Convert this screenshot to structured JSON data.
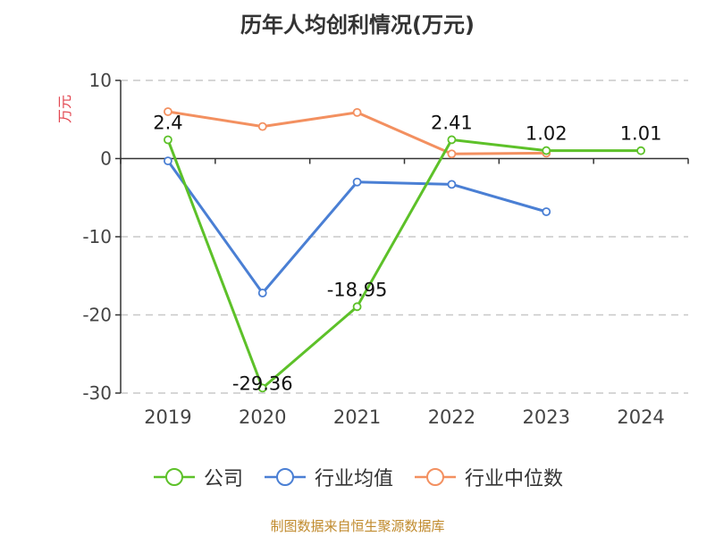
{
  "title": "历年人均创利情况(万元)",
  "source": "制图数据来自恒生聚源数据库",
  "colors": {
    "company": "#5dc129",
    "industry_avg": "#4a7fd4",
    "industry_median": "#f39060",
    "title_color": "#333333",
    "unit_color": "#e2454f",
    "source_color": "#c08a2c"
  },
  "chart_data": {
    "type": "line",
    "title": "历年人均创利情况(万元)",
    "ylabel": "万元",
    "xlabel": "",
    "categories": [
      "2019",
      "2020",
      "2021",
      "2022",
      "2023",
      "2024"
    ],
    "ylim": [
      -30,
      10
    ],
    "yticks": [
      10,
      0,
      -10,
      -20,
      -30
    ],
    "grid": "horizontal dashed",
    "legend_position": "bottom",
    "series": [
      {
        "name": "公司",
        "values": [
          2.4,
          -29.36,
          -18.95,
          2.41,
          1.02,
          1.01
        ],
        "labels": [
          "2.4",
          "-29.36",
          "-18.95",
          "2.41",
          "1.02",
          "1.01"
        ]
      },
      {
        "name": "行业均值",
        "values": [
          -0.3,
          -17.2,
          -3.0,
          -3.3,
          -6.8,
          null
        ]
      },
      {
        "name": "行业中位数",
        "values": [
          6.0,
          4.1,
          5.9,
          0.6,
          0.7,
          null
        ]
      }
    ]
  }
}
